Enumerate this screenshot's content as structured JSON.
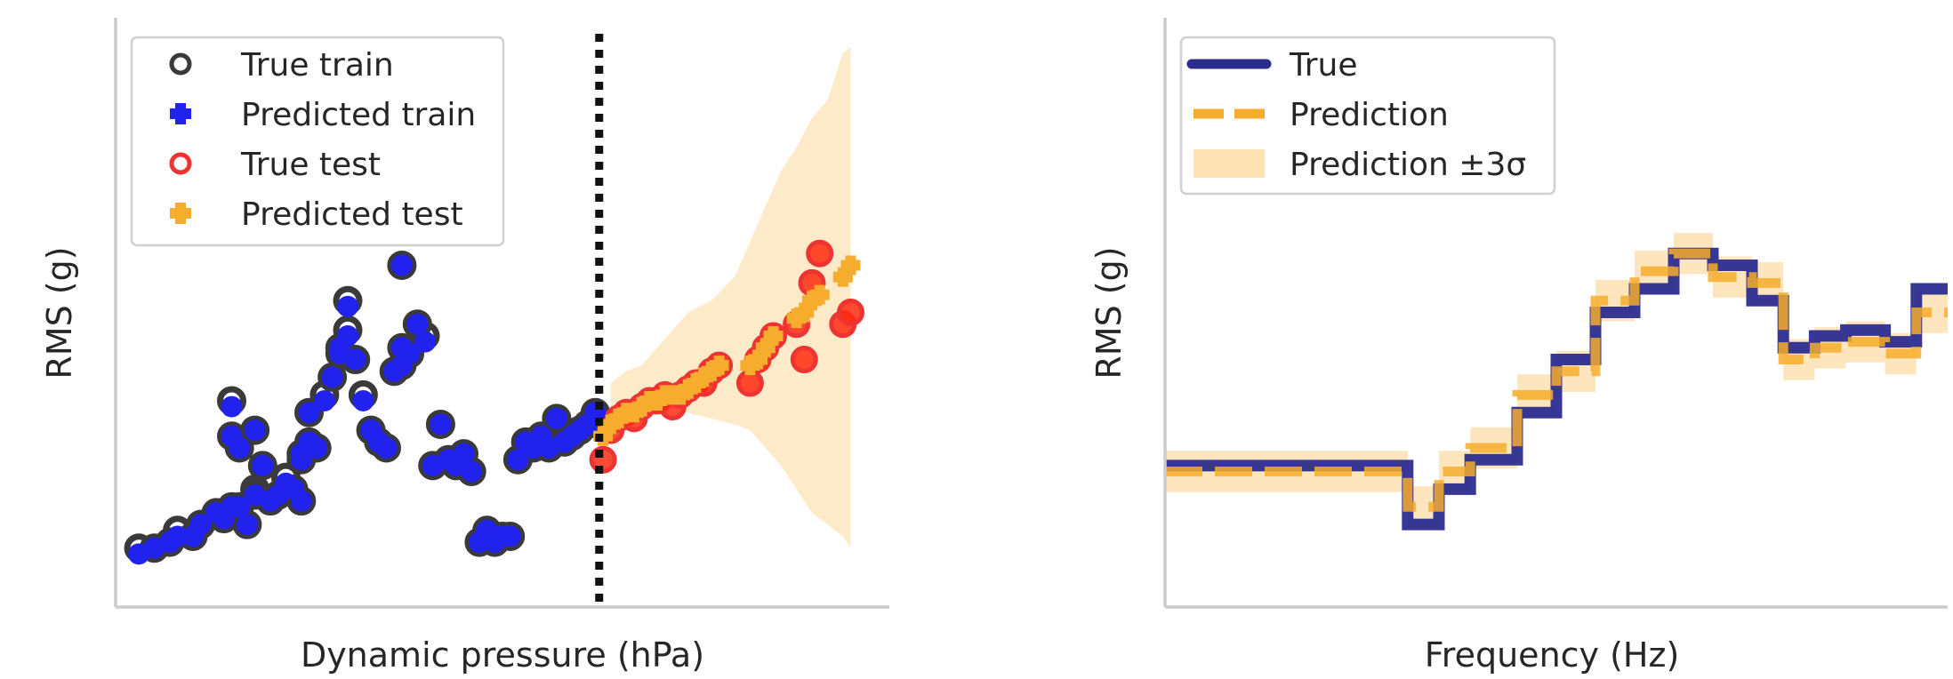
{
  "chart_data": [
    {
      "type": "scatter",
      "xlabel": "Dynamic pressure (hPa)",
      "ylabel": "RMS (g)",
      "xlim": [
        0,
        100
      ],
      "ylim": [
        0,
        100
      ],
      "split_x": 62.5,
      "ticks_shown": false,
      "grid": false,
      "legend_placement": "top-left",
      "legend": [
        {
          "label": "True train",
          "marker": "open-circle",
          "color": "#3a3a3a"
        },
        {
          "label": "Predicted train",
          "marker": "plus",
          "color": "#2222ee"
        },
        {
          "label": "True test",
          "marker": "open-circle",
          "color": "#ee3333"
        },
        {
          "label": "Predicted test",
          "marker": "plus",
          "color": "#f6ac2d"
        }
      ],
      "band_color": "#fde9c6",
      "band": [
        [
          64,
          30,
          38
        ],
        [
          66,
          32,
          40
        ],
        [
          68,
          33,
          41
        ],
        [
          72,
          34,
          47
        ],
        [
          74,
          33,
          50
        ],
        [
          77,
          32,
          52
        ],
        [
          80,
          31,
          56
        ],
        [
          82,
          30,
          62
        ],
        [
          84,
          27,
          68
        ],
        [
          86,
          24,
          74
        ],
        [
          88,
          20,
          78
        ],
        [
          90,
          16,
          83
        ],
        [
          92,
          14,
          86
        ],
        [
          94,
          12,
          94
        ],
        [
          95,
          10,
          95
        ]
      ],
      "series": [
        {
          "key": "true_train",
          "x": [
            3,
            5,
            7,
            8,
            10,
            11,
            13,
            14,
            15,
            16,
            17,
            18,
            19,
            20,
            21,
            22,
            23,
            24,
            25,
            26,
            27,
            28,
            29,
            30,
            31,
            32,
            33,
            34,
            35,
            36,
            37,
            38,
            39,
            40,
            41,
            42,
            43,
            44,
            45,
            46,
            47,
            48,
            49,
            50,
            51,
            52,
            53,
            54,
            55,
            56,
            57,
            58,
            59,
            60,
            61,
            62,
            15,
            15,
            16,
            18,
            18,
            24,
            24,
            25,
            29,
            30,
            37,
            37
          ],
          "y": [
            10,
            10,
            11,
            13,
            12,
            14,
            16,
            15,
            17,
            17,
            14,
            20,
            24,
            18,
            19,
            22,
            20,
            25,
            28,
            27,
            36,
            39,
            43,
            47,
            42,
            36,
            30,
            28,
            27,
            40,
            44,
            43,
            48,
            46,
            24,
            31,
            25,
            24,
            26,
            23,
            11,
            13,
            11,
            12,
            12,
            25,
            28,
            27,
            29,
            27,
            32,
            28,
            29,
            30,
            31,
            33,
            35,
            29,
            27,
            30,
            19,
            26,
            18,
            33,
            44,
            52,
            58,
            41
          ]
        },
        {
          "key": "pred_train",
          "x": [
            3,
            5,
            7,
            8,
            10,
            11,
            13,
            14,
            15,
            16,
            17,
            18,
            19,
            20,
            21,
            22,
            23,
            24,
            25,
            26,
            27,
            28,
            29,
            30,
            31,
            32,
            33,
            34,
            35,
            36,
            37,
            38,
            39,
            40,
            41,
            42,
            43,
            44,
            45,
            46,
            47,
            48,
            49,
            50,
            51,
            52,
            53,
            54,
            55,
            56,
            57,
            58,
            59,
            60,
            61,
            62,
            15,
            15,
            16,
            18,
            18,
            24,
            24,
            25,
            29,
            30,
            37,
            37
          ],
          "y": [
            9,
            10,
            11,
            12,
            12,
            14,
            16,
            15,
            17,
            17,
            14,
            19,
            24,
            18,
            19,
            21,
            20,
            25,
            28,
            27,
            35,
            39,
            43,
            46,
            42,
            35,
            30,
            28,
            27,
            40,
            44,
            43,
            48,
            45,
            24,
            31,
            25,
            24,
            26,
            23,
            11,
            13,
            11,
            12,
            12,
            25,
            28,
            27,
            29,
            27,
            32,
            28,
            29,
            30,
            31,
            33,
            34,
            29,
            27,
            30,
            19,
            26,
            18,
            33,
            44,
            51,
            58,
            41
          ]
        },
        {
          "key": "true_test",
          "x": [
            63,
            64,
            65,
            66,
            67,
            68,
            69,
            70,
            71,
            72,
            73,
            74,
            75,
            76,
            77,
            78,
            82,
            83,
            84,
            85,
            88,
            89,
            90,
            91,
            94,
            95
          ],
          "y": [
            25,
            30,
            32,
            33,
            32,
            34,
            35,
            35,
            36,
            34,
            36,
            37,
            38,
            38,
            40,
            41,
            38,
            42,
            44,
            46,
            48,
            42,
            55,
            60,
            48,
            50
          ]
        },
        {
          "key": "pred_test",
          "x": [
            63,
            64,
            65,
            66,
            67,
            68,
            69,
            70,
            71,
            72,
            73,
            74,
            75,
            76,
            77,
            78,
            82,
            83,
            84,
            85,
            88,
            89,
            90,
            91,
            94,
            95
          ],
          "y": [
            29,
            31,
            32,
            33,
            33,
            34,
            35,
            35,
            36,
            36,
            36,
            37,
            38,
            39,
            40,
            41,
            41,
            42,
            44,
            46,
            49,
            50,
            52,
            53,
            56,
            58
          ]
        }
      ]
    },
    {
      "type": "line",
      "xlabel": "Frequency (Hz)",
      "ylabel": "RMS (g)",
      "xlim": [
        0,
        100
      ],
      "ylim": [
        0,
        100
      ],
      "ticks_shown": false,
      "grid": false,
      "legend_placement": "top-left",
      "legend": [
        {
          "label": "True",
          "style": "solid",
          "color": "#2c2c8f"
        },
        {
          "label": "Prediction",
          "style": "dashed",
          "color": "#f6ac2d"
        },
        {
          "label": "Prediction ±3σ",
          "style": "band",
          "color": "#fde2b3"
        }
      ],
      "x_edges": [
        0,
        31,
        35,
        39,
        45,
        50,
        55,
        60,
        65,
        70,
        75,
        79,
        83,
        87,
        92,
        96,
        100
      ],
      "true_values": [
        24,
        14,
        20,
        25,
        33,
        42,
        50,
        54,
        60,
        58,
        52,
        44,
        46,
        47,
        45,
        54,
        54
      ],
      "pred_values": [
        23,
        17,
        23,
        27,
        36,
        40,
        52,
        57,
        60,
        56,
        55,
        42,
        44,
        45,
        43,
        50,
        50
      ],
      "band_halfwidth": 3.5
    }
  ]
}
